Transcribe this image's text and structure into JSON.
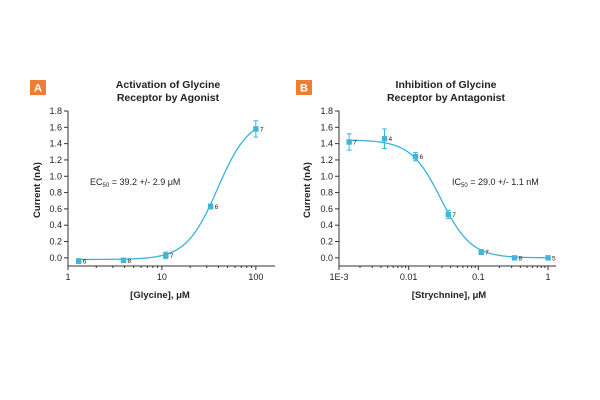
{
  "chart_data": [
    {
      "type": "line",
      "panel": "A",
      "title_lines": [
        "Activation of Glycine",
        "Receptor by Agonist"
      ],
      "xlabel": "[Glycine], μM",
      "ylabel": "Current (nA)",
      "xscale": "log",
      "xlim": [
        1,
        160
      ],
      "ylim": [
        -0.1,
        1.8
      ],
      "xticks": [
        1,
        10,
        100
      ],
      "xtick_labels": [
        "1",
        "10",
        "100"
      ],
      "yticks": [
        0.0,
        0.2,
        0.4,
        0.6,
        0.8,
        1.0,
        1.2,
        1.4,
        1.6,
        1.8
      ],
      "ytick_labels": [
        "0.0",
        "0.2",
        "0.4",
        "0.6",
        "0.8",
        "1.0",
        "1.2",
        "1.4",
        "1.6",
        "1.8"
      ],
      "annotation": {
        "prefix": "EC",
        "sub": "50",
        "suffix": " = 39.2 +/- 2.9 μM"
      },
      "points": [
        {
          "x": 1.3,
          "y": -0.04,
          "err": 0.03,
          "n": "6"
        },
        {
          "x": 3.9,
          "y": -0.03,
          "err": 0.02,
          "n": "8"
        },
        {
          "x": 11,
          "y": 0.03,
          "err": 0.04,
          "n": "7"
        },
        {
          "x": 33,
          "y": 0.63,
          "err": 0.03,
          "n": "6"
        },
        {
          "x": 100,
          "y": 1.58,
          "err": 0.1,
          "n": "7"
        }
      ],
      "fit": {
        "model": "hill-increasing",
        "bottom": -0.02,
        "top": 1.72,
        "ec50": 39.2,
        "hill": 2.6
      }
    },
    {
      "type": "line",
      "panel": "B",
      "title_lines": [
        "Inhibition of Glycine",
        "Receptor by Antagonist"
      ],
      "xlabel": "[Strychnine], μM",
      "ylabel": "Current (nA)",
      "xscale": "log",
      "xlim": [
        0.001,
        1.3
      ],
      "ylim": [
        -0.1,
        1.8
      ],
      "xticks": [
        0.001,
        0.01,
        0.1,
        1
      ],
      "xtick_labels": [
        "1E-3",
        "0.01",
        "0.1",
        "1"
      ],
      "yticks": [
        0.0,
        0.2,
        0.4,
        0.6,
        0.8,
        1.0,
        1.2,
        1.4,
        1.6,
        1.8
      ],
      "ytick_labels": [
        "0.0",
        "0.2",
        "0.4",
        "0.6",
        "0.8",
        "1.0",
        "1.2",
        "1.4",
        "1.6",
        "1.8"
      ],
      "annotation": {
        "prefix": "IC",
        "sub": "50",
        "suffix": " = 29.0 +/- 1.1 nM"
      },
      "points": [
        {
          "x": 0.0014,
          "y": 1.42,
          "err": 0.1,
          "n": "7"
        },
        {
          "x": 0.0045,
          "y": 1.46,
          "err": 0.12,
          "n": "4"
        },
        {
          "x": 0.0125,
          "y": 1.24,
          "err": 0.05,
          "n": "6"
        },
        {
          "x": 0.037,
          "y": 0.53,
          "err": 0.05,
          "n": "7"
        },
        {
          "x": 0.11,
          "y": 0.07,
          "err": 0.03,
          "n": "7"
        },
        {
          "x": 0.33,
          "y": 0.0,
          "err": 0.01,
          "n": "8"
        },
        {
          "x": 1.0,
          "y": 0.0,
          "err": 0.01,
          "n": "5"
        }
      ],
      "fit": {
        "model": "hill-decreasing",
        "bottom": 0.0,
        "top": 1.445,
        "ic50": 0.029,
        "hill": 2.0
      }
    }
  ],
  "colors": {
    "series": "#3fb5d8",
    "curve": "#39b3dc",
    "panel_label_bg": "#ef7d33",
    "axis": "#333333"
  }
}
